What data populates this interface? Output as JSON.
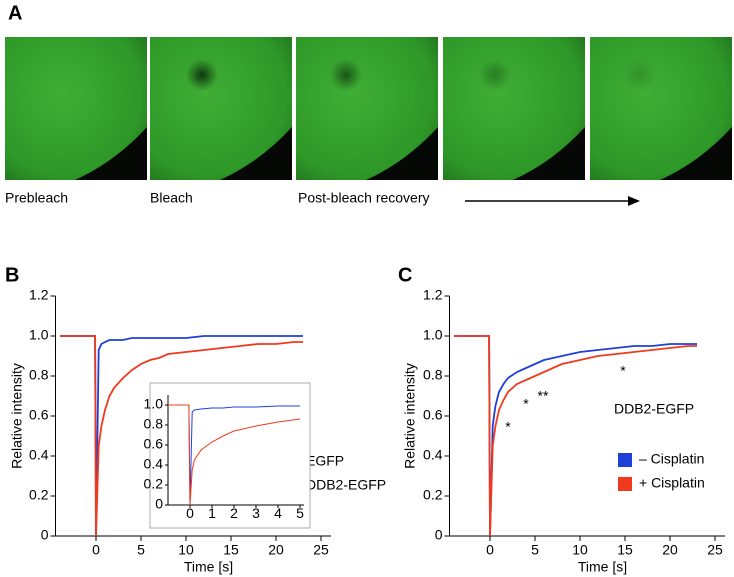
{
  "figure": {
    "panel_labels": [
      "A",
      "B",
      "C"
    ],
    "image_captions": [
      "Prebleach",
      "Bleach",
      "Post-bleach recovery"
    ]
  },
  "chart_data": [
    {
      "type": "line",
      "xlabel": "Time [s]",
      "ylabel": "Relative intensity",
      "xlim": [
        -4.5,
        25
      ],
      "xticks": [
        0,
        5,
        10,
        15,
        20,
        25
      ],
      "ylim": [
        0,
        1.2
      ],
      "yticks": [
        0,
        0.2,
        0.4,
        0.6,
        0.8,
        {
          "value": 1,
          "label": "1.0"
        },
        1.2
      ],
      "legend": "lower right",
      "x": [
        -4,
        -3,
        -2,
        -1,
        -0.1,
        0,
        0.3,
        0.6,
        1,
        1.5,
        2,
        3,
        4,
        5,
        6,
        7,
        8,
        10,
        12,
        14,
        16,
        18,
        20,
        22,
        23
      ],
      "series": [
        {
          "name": "EGFP",
          "color": "#1f3fd8",
          "values": [
            1,
            1,
            1,
            1,
            1,
            0,
            0.93,
            0.96,
            0.97,
            0.98,
            0.98,
            0.98,
            0.99,
            0.99,
            0.99,
            0.99,
            0.99,
            0.99,
            1,
            1,
            1,
            1,
            1,
            1,
            1
          ]
        },
        {
          "name": "DDB2-EGFP",
          "color": "#f03a1e",
          "values": [
            1,
            1,
            1,
            1,
            1,
            0,
            0.45,
            0.55,
            0.63,
            0.7,
            0.74,
            0.79,
            0.83,
            0.86,
            0.88,
            0.89,
            0.91,
            0.92,
            0.93,
            0.94,
            0.95,
            0.96,
            0.96,
            0.97,
            0.97
          ]
        }
      ]
    },
    {
      "type": "line",
      "xlim": [
        -1,
        5
      ],
      "xticks": [
        0,
        1,
        2,
        3,
        4,
        5
      ],
      "ylim": [
        0,
        1.1
      ],
      "yticks": [
        0,
        0.2,
        0.4,
        0.6,
        0.8,
        {
          "value": 1,
          "label": "1.0"
        }
      ],
      "x": [
        -1,
        -0.5,
        -0.05,
        0,
        0.1,
        0.2,
        0.5,
        1,
        1.5,
        2,
        3,
        4,
        5
      ],
      "series": [
        {
          "color": "#1f3fd8",
          "values": [
            1,
            1,
            1,
            0,
            0.93,
            0.95,
            0.96,
            0.97,
            0.97,
            0.98,
            0.98,
            0.99,
            0.99
          ]
        },
        {
          "color": "#f03a1e",
          "values": [
            1,
            1,
            1,
            0,
            0.35,
            0.45,
            0.55,
            0.63,
            0.69,
            0.74,
            0.79,
            0.83,
            0.86
          ]
        }
      ]
    },
    {
      "type": "line",
      "xlabel": "Time [s]",
      "ylabel": "Relative intensity",
      "xlim": [
        -4.5,
        25
      ],
      "xticks": [
        0,
        5,
        10,
        15,
        20,
        25
      ],
      "ylim": [
        0,
        1.2
      ],
      "yticks": [
        0,
        0.2,
        0.4,
        0.6,
        0.8,
        {
          "value": 1,
          "label": "1.0"
        },
        1.2
      ],
      "legend": "lower right",
      "annotations": [
        "DDB2-EGFP",
        "*",
        "*",
        "**",
        "*"
      ],
      "x": [
        -4,
        -3,
        -2,
        -1,
        -0.1,
        0,
        0.3,
        0.6,
        1,
        1.5,
        2,
        3,
        4,
        5,
        6,
        7,
        8,
        10,
        12,
        14,
        16,
        18,
        20,
        22,
        23
      ],
      "series": [
        {
          "name": "– Cisplatin",
          "color": "#1f3fd8",
          "values": [
            1,
            1,
            1,
            1,
            1,
            0,
            0.55,
            0.65,
            0.72,
            0.76,
            0.79,
            0.82,
            0.84,
            0.86,
            0.88,
            0.89,
            0.9,
            0.92,
            0.93,
            0.94,
            0.95,
            0.95,
            0.96,
            0.96,
            0.96
          ]
        },
        {
          "name": "+ Cisplatin",
          "color": "#f03a1e",
          "values": [
            1,
            1,
            1,
            1,
            1,
            0,
            0.45,
            0.55,
            0.63,
            0.68,
            0.72,
            0.76,
            0.78,
            0.8,
            0.82,
            0.84,
            0.86,
            0.88,
            0.9,
            0.91,
            0.92,
            0.93,
            0.94,
            0.95,
            0.95
          ]
        }
      ]
    }
  ]
}
